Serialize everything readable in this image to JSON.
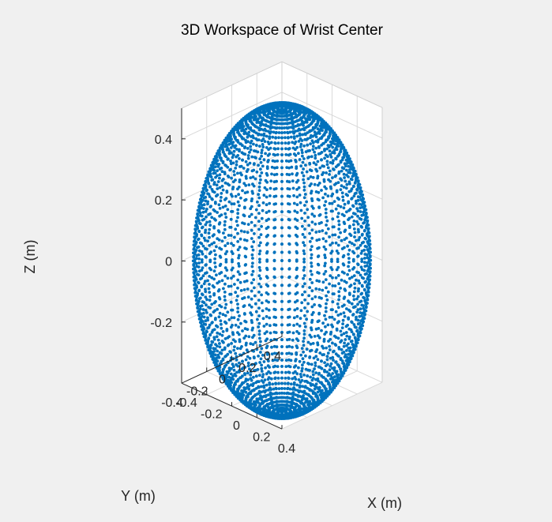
{
  "chart_data": {
    "type": "scatter",
    "projection": "3d",
    "title": "3D Workspace of Wrist Center",
    "xlabel": "X (m)",
    "ylabel": "Y (m)",
    "zlabel": "Z (m)",
    "xlim": [
      -0.4,
      0.4
    ],
    "ylim": [
      -0.4,
      0.4
    ],
    "zlim": [
      -0.4,
      0.5
    ],
    "xticks": [
      "-0.4",
      "-0.2",
      "0",
      "0.2",
      "0.4"
    ],
    "yticks": [
      "-0.4",
      "-0.2",
      "0",
      "0.2",
      "0.4"
    ],
    "zticks": [
      "-0.2",
      "0",
      "0.2",
      "0.4"
    ],
    "grid": true,
    "view": {
      "azimuth": -37.5,
      "elevation": 30
    },
    "marker_color": "#0072bd",
    "series": [
      {
        "shape": "sphere",
        "center": [
          0,
          0,
          0
        ],
        "radius": 0.5,
        "latitude_steps": 60,
        "longitude_steps": 72
      }
    ]
  }
}
